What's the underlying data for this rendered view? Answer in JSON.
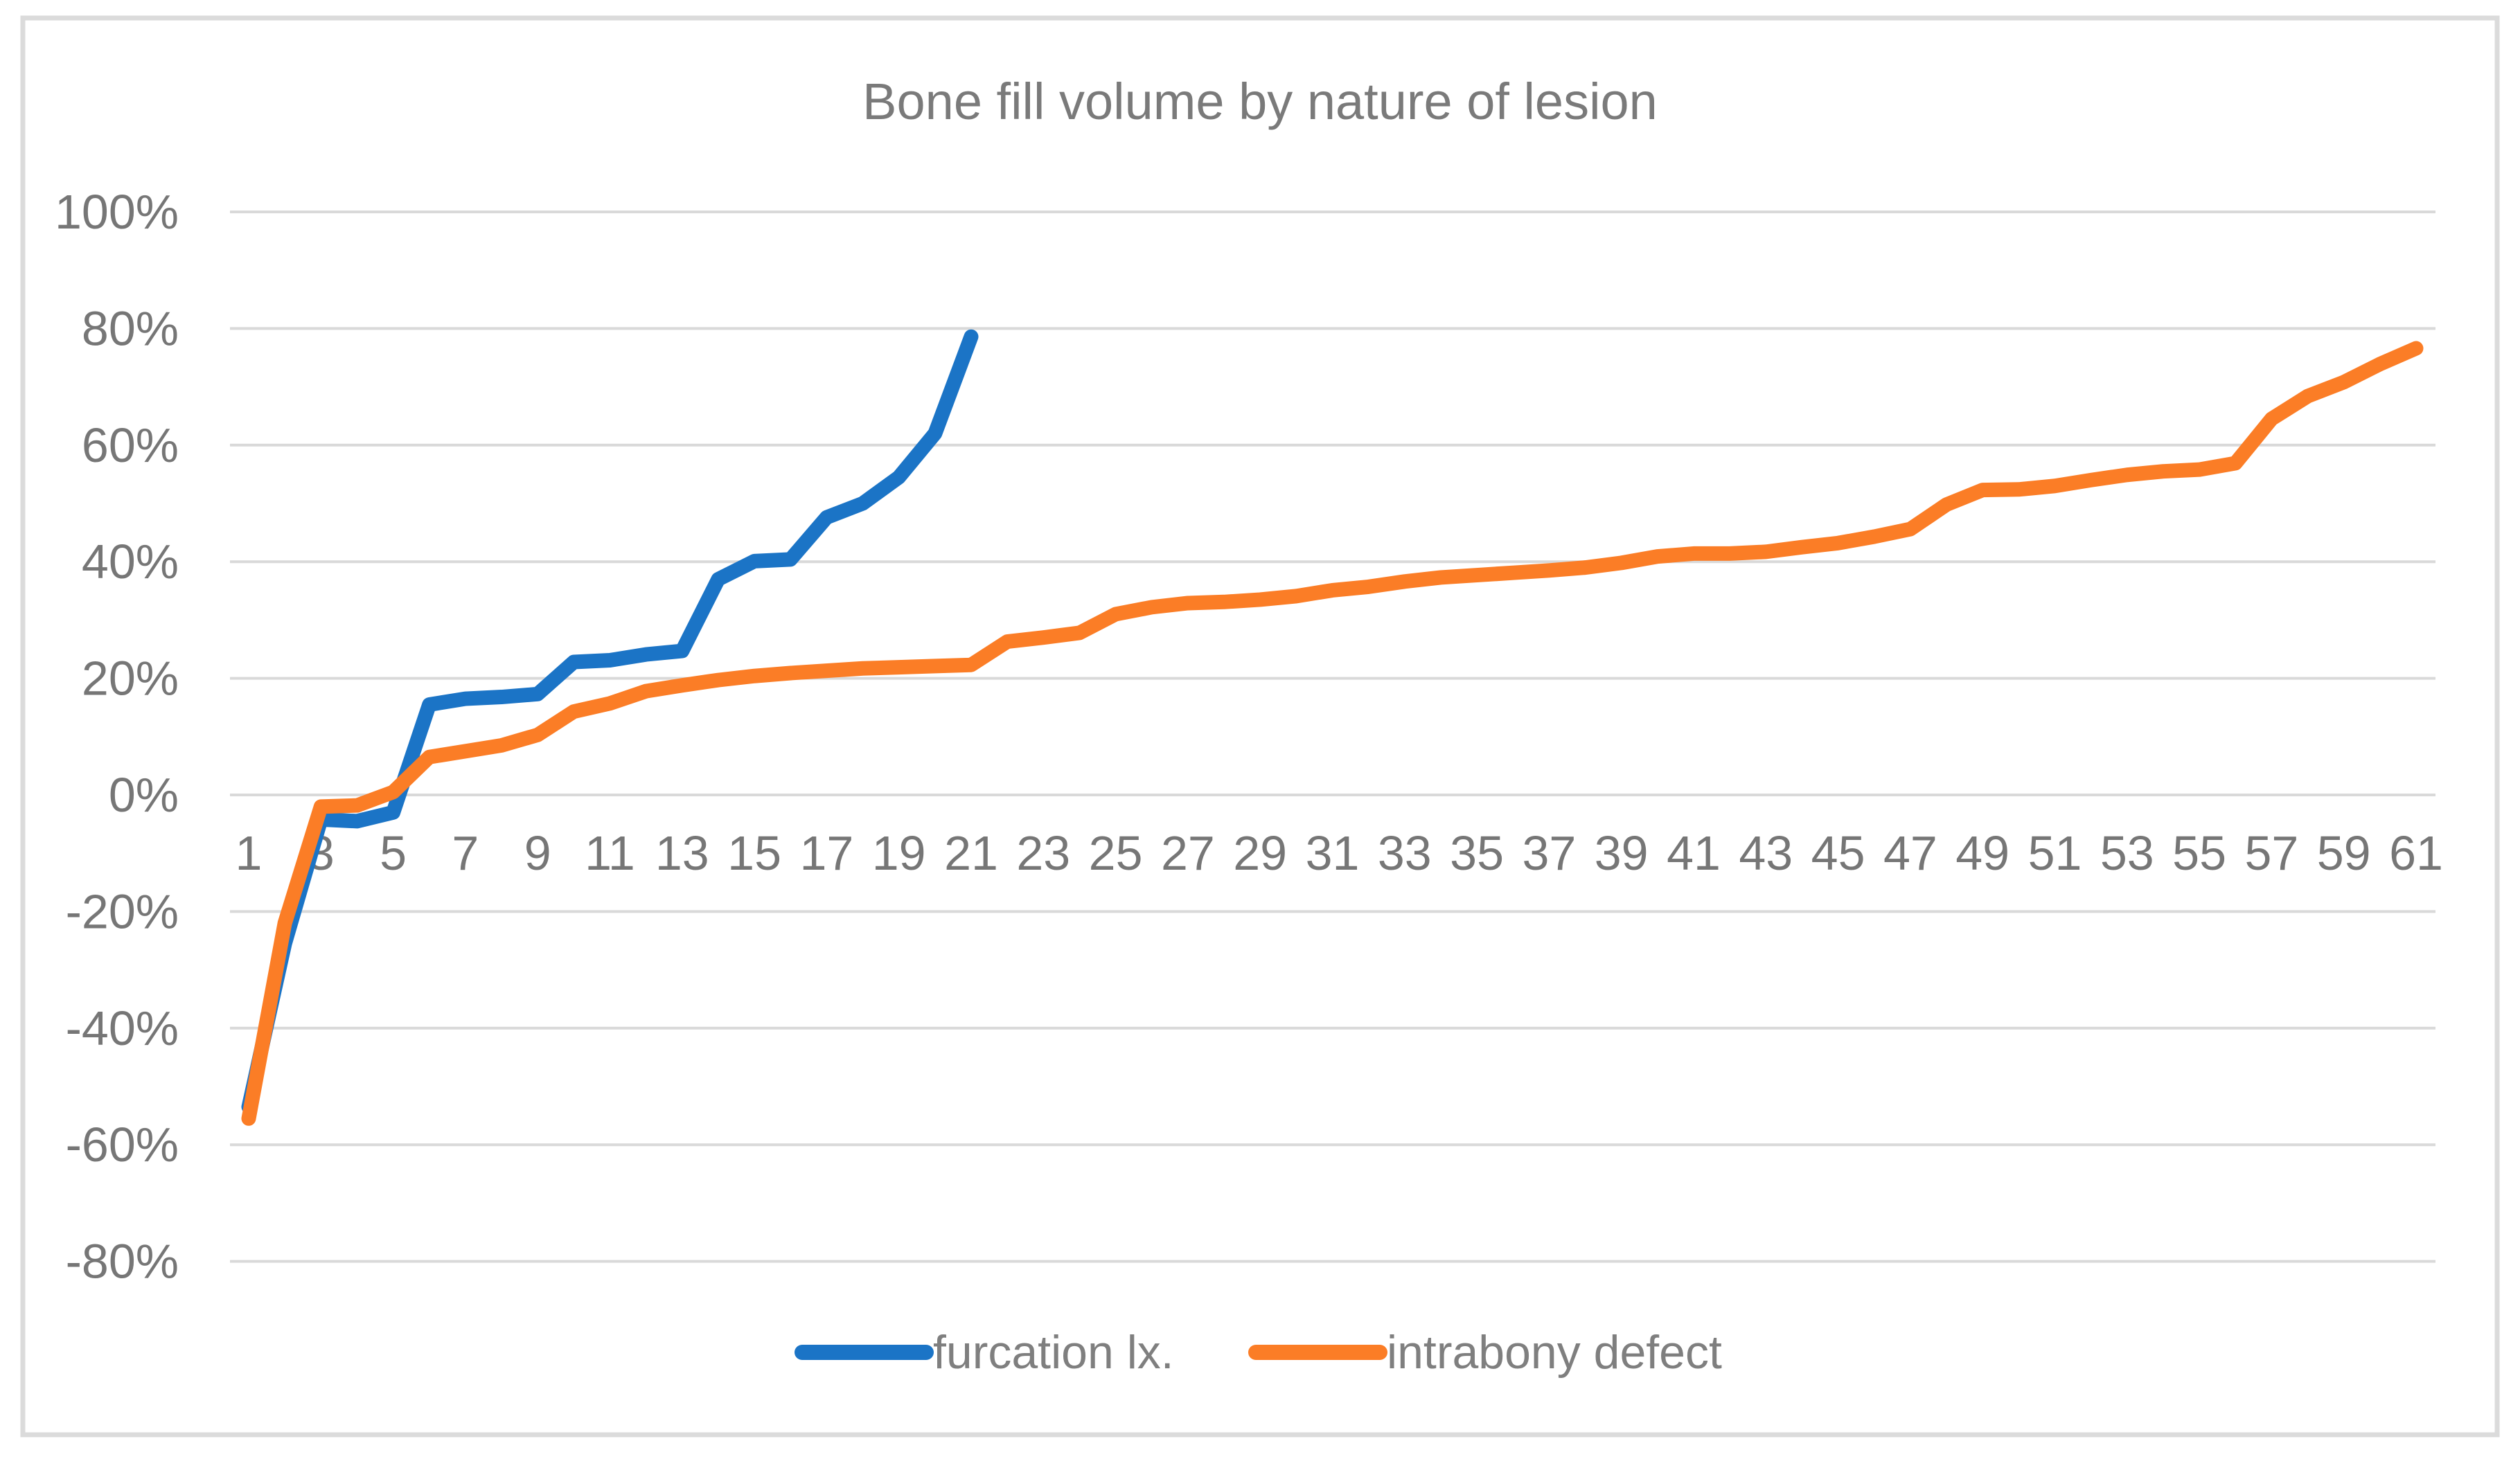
{
  "title": "Bone fill volume by nature of lesion",
  "colors": {
    "background": "#ffffff",
    "grid": "#d9d9d9",
    "border": "#dbdbdb",
    "axis_text": "#767676",
    "title_text": "#7a7a7a",
    "legend_text": "#7f7f7f",
    "series_blue": "#1b74c6",
    "series_orange": "#fb7d26"
  },
  "chart_data": {
    "type": "line",
    "title": "Bone fill volume by nature of lesion",
    "grid": "horizontal",
    "legend_position": "bottom",
    "xlabel": "",
    "ylabel": "",
    "ylim": [
      -80,
      100
    ],
    "x_range": [
      1,
      61
    ],
    "x_tick_labels": [
      "1",
      "3",
      "5",
      "7",
      "9",
      "11",
      "13",
      "15",
      "17",
      "19",
      "21",
      "23",
      "25",
      "27",
      "29",
      "31",
      "33",
      "35",
      "37",
      "39",
      "41",
      "43",
      "45",
      "47",
      "49",
      "51",
      "53",
      "55",
      "57",
      "59",
      "61"
    ],
    "y_ticks": {
      "values": [
        100,
        80,
        60,
        40,
        20,
        0,
        -20,
        -40,
        -60,
        -80
      ],
      "labels": [
        "100%",
        "80%",
        "60%",
        "40%",
        "20%",
        "0%",
        "-20%",
        "-40%",
        "-60%",
        "-80%"
      ]
    },
    "series": [
      {
        "name": "furcation lx.",
        "color": "#1b74c6",
        "x_start": 1,
        "values": [
          -53.5,
          -25.5,
          -4.2,
          -4.5,
          -3,
          15.5,
          16.5,
          16.8,
          17.3,
          22.8,
          23.1,
          24.1,
          24.7,
          37,
          40.1,
          40.4,
          47.6,
          50,
          54.5,
          62,
          78.6
        ]
      },
      {
        "name": "intrabony defect",
        "color": "#fb7d26",
        "x_start": 1,
        "values": [
          -55.5,
          -22,
          -2,
          -1.8,
          0.5,
          6.5,
          7.5,
          8.5,
          10.3,
          14.3,
          15.7,
          17.8,
          18.8,
          19.7,
          20.4,
          20.9,
          21.3,
          21.7,
          21.9,
          22.1,
          22.3,
          26.3,
          27,
          27.8,
          31,
          32.2,
          32.9,
          33.1,
          33.5,
          34.1,
          35.1,
          35.7,
          36.6,
          37.3,
          37.7,
          38.1,
          38.5,
          39,
          39.8,
          40.9,
          41.4,
          41.4,
          41.7,
          42.5,
          43.2,
          44.3,
          45.6,
          49.8,
          52.3,
          52.4,
          53,
          54,
          54.9,
          55.5,
          55.8,
          56.9,
          64.5,
          68.4,
          70.8,
          73.9,
          76.6
        ]
      }
    ]
  }
}
